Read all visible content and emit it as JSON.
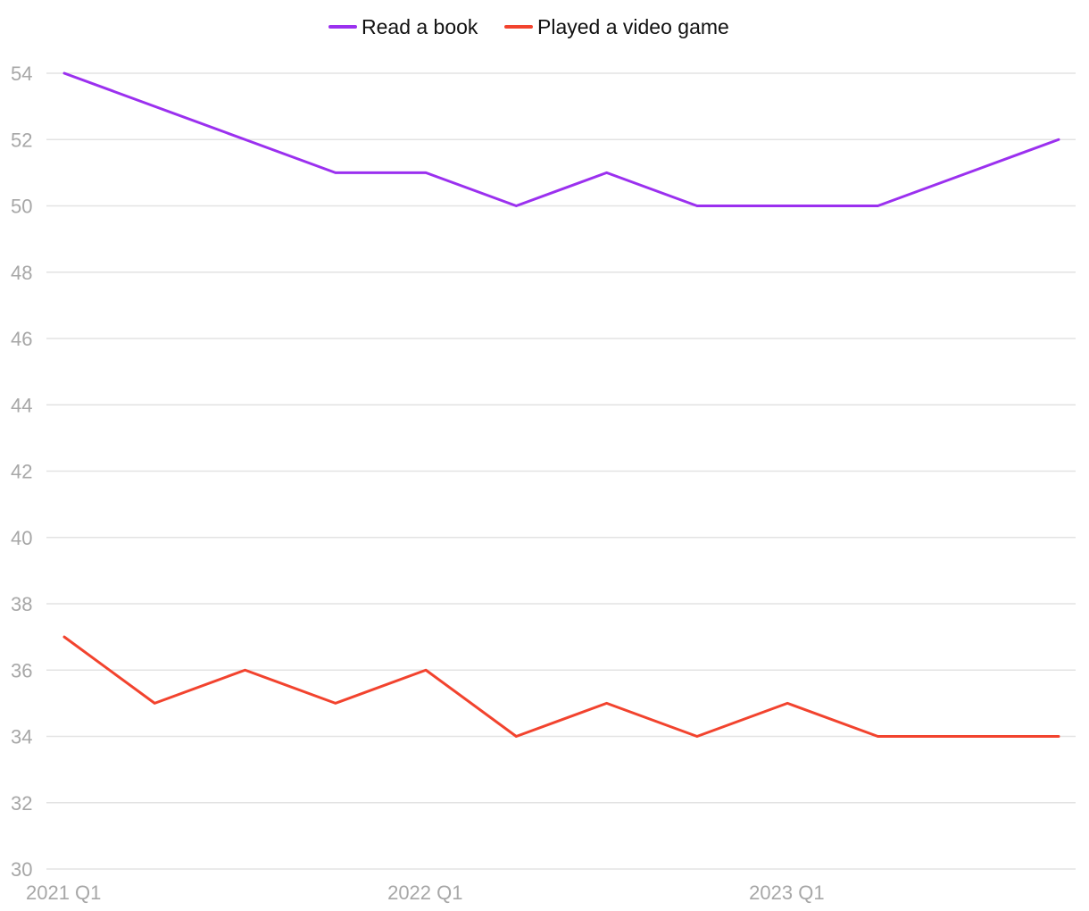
{
  "chart_data": {
    "type": "line",
    "title": "",
    "xlabel": "",
    "ylabel": "",
    "x": [
      "2021 Q1",
      "2021 Q2",
      "2021 Q3",
      "2021 Q4",
      "2022 Q1",
      "2022 Q2",
      "2022 Q3",
      "2022 Q4",
      "2023 Q1",
      "2023 Q2",
      "2023 Q3",
      "2023 Q4"
    ],
    "x_tick_labels": [
      "2021 Q1",
      "2022 Q1",
      "2023 Q1"
    ],
    "series": [
      {
        "name": "Read a book",
        "color": "#9b30ef",
        "values": [
          54,
          53,
          52,
          51,
          51,
          50,
          51,
          50,
          50,
          50,
          51,
          52
        ]
      },
      {
        "name": "Played a video game",
        "color": "#f2432e",
        "values": [
          37,
          35,
          36,
          35,
          36,
          34,
          35,
          34,
          35,
          34,
          34,
          34
        ]
      }
    ],
    "ylim": [
      30,
      54
    ],
    "y_ticks": [
      30,
      32,
      34,
      36,
      38,
      40,
      42,
      44,
      46,
      48,
      50,
      52,
      54
    ],
    "grid": true,
    "legend_position": "top-center",
    "colors": {
      "grid": "#e3e3e3",
      "tick_text": "#a7a7a7",
      "legend_text": "#111111"
    }
  }
}
